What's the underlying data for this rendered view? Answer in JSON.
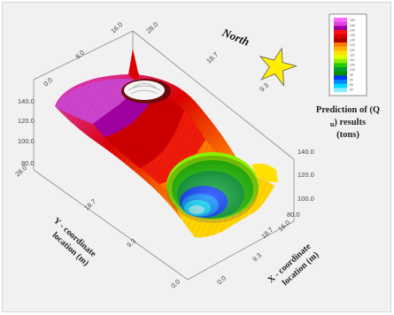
{
  "chart_data": {
    "type": "surface3d",
    "title": "",
    "colorbar_title": "Prediction of (Q",
    "colorbar_subscript": "u",
    "colorbar_title_end": ") results",
    "colorbar_units": "(tons)",
    "colorbar_ticks": [
      "150",
      "145",
      "140",
      "135",
      "130",
      "125",
      "120",
      "115",
      "110",
      "105",
      "100",
      "95",
      "90",
      "85",
      "80"
    ],
    "colorbar_colors": [
      "#ff66ff",
      "#dd44dd",
      "#a000a0",
      "#ff1010",
      "#dd0000",
      "#aa0000",
      "#ff7800",
      "#ffb000",
      "#ffe000",
      "#e2ff00",
      "#8ef000",
      "#22cc00",
      "#00a030",
      "#009000",
      "#0038ff",
      "#0088ff",
      "#00d8ff",
      "#8aeeff"
    ],
    "north_label": "North",
    "axes": {
      "x": {
        "label_line1": "X - coordinate",
        "label_line2": "location (m)",
        "ticks": [
          "0.0",
          "9.3",
          "18.7",
          "28.0"
        ],
        "far_ticks": [
          "16.0",
          "9.3",
          "0.0"
        ]
      },
      "y": {
        "label_line1": "Y - coordinate",
        "label_line2": "location (m)",
        "ticks": [
          "28.0",
          "18.7",
          "9.3",
          "0.0"
        ],
        "far_ticks": [
          "0.0",
          "8.0",
          "16.0"
        ],
        "far_x_tick": "28.0",
        "far_x_mid": "18.7"
      },
      "z": {
        "left_ticks": [
          "140.0",
          "120.0",
          "100.0",
          "80.0"
        ],
        "right_ticks": [
          "140.0",
          "120.0",
          "100.0",
          "80.0"
        ],
        "range": [
          80,
          140
        ]
      }
    },
    "surface_features": [
      {
        "name": "dome",
        "level": 150,
        "position": "north-west",
        "color": "white"
      },
      {
        "name": "bowl",
        "level": 80,
        "position": "south",
        "color": "cyan"
      }
    ]
  }
}
